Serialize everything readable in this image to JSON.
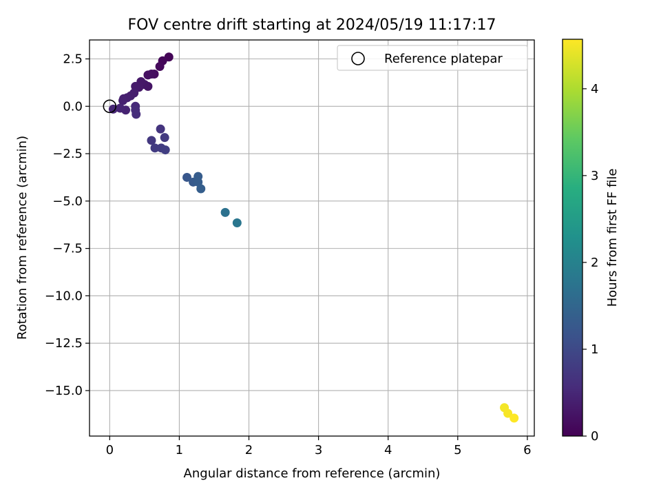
{
  "chart_data": {
    "type": "scatter",
    "title": "FOV centre drift starting at 2024/05/19 11:17:17",
    "xlabel": "Angular distance from reference (arcmin)",
    "ylabel": "Rotation from reference (arcmin)",
    "xlim": [
      -0.29,
      6.1
    ],
    "ylim": [
      -17.4,
      3.5
    ],
    "x_ticks": [
      0,
      1,
      2,
      3,
      4,
      5,
      6
    ],
    "x_tick_labels": [
      "0",
      "1",
      "2",
      "3",
      "4",
      "5",
      "6"
    ],
    "y_ticks": [
      2.5,
      0,
      -2.5,
      -5,
      -7.5,
      -10,
      -12.5,
      -15
    ],
    "y_tick_labels": [
      "2.5",
      "0.0",
      "−2.5",
      "−5.0",
      "−7.5",
      "−10.0",
      "−12.5",
      "−15.0"
    ],
    "grid": true,
    "legend": {
      "placement": "top-right",
      "entries": [
        {
          "label": "Reference platepar",
          "marker": "open-circle"
        }
      ]
    },
    "reference_point": {
      "x": 0,
      "y": 0
    },
    "colorbar": {
      "label": "Hours from first FF file",
      "colormap": "viridis",
      "range": [
        0,
        4.57
      ],
      "ticks": [
        0,
        1,
        2,
        3,
        4
      ],
      "tick_labels": [
        "0",
        "1",
        "2",
        "3",
        "4"
      ]
    },
    "points": [
      {
        "x": 0.85,
        "y": 2.6,
        "c": 0.05
      },
      {
        "x": 0.76,
        "y": 2.4,
        "c": 0.08
      },
      {
        "x": 0.72,
        "y": 2.1,
        "c": 0.1
      },
      {
        "x": 0.64,
        "y": 1.7,
        "c": 0.15
      },
      {
        "x": 0.6,
        "y": 1.7,
        "c": 0.18
      },
      {
        "x": 0.55,
        "y": 1.65,
        "c": 0.2
      },
      {
        "x": 0.55,
        "y": 1.05,
        "c": 0.25
      },
      {
        "x": 0.5,
        "y": 1.15,
        "c": 0.28
      },
      {
        "x": 0.45,
        "y": 1.3,
        "c": 0.3
      },
      {
        "x": 0.42,
        "y": 1.0,
        "c": 0.32
      },
      {
        "x": 0.37,
        "y": 1.05,
        "c": 0.35
      },
      {
        "x": 0.35,
        "y": 0.7,
        "c": 0.37
      },
      {
        "x": 0.3,
        "y": 0.55,
        "c": 0.38
      },
      {
        "x": 0.25,
        "y": 0.45,
        "c": 0.4
      },
      {
        "x": 0.2,
        "y": 0.4,
        "c": 0.41
      },
      {
        "x": 0.19,
        "y": 0.3,
        "c": 0.42
      },
      {
        "x": 0.23,
        "y": -0.2,
        "c": 0.45
      },
      {
        "x": 0.15,
        "y": -0.1,
        "c": 0.48
      },
      {
        "x": 0.05,
        "y": -0.15,
        "c": 0.5
      },
      {
        "x": 0.37,
        "y": 0.0,
        "c": 0.55
      },
      {
        "x": 0.37,
        "y": -0.2,
        "c": 0.58
      },
      {
        "x": 0.38,
        "y": -0.42,
        "c": 0.6
      },
      {
        "x": 0.73,
        "y": -1.2,
        "c": 0.7
      },
      {
        "x": 0.6,
        "y": -1.8,
        "c": 0.75
      },
      {
        "x": 0.79,
        "y": -1.65,
        "c": 0.78
      },
      {
        "x": 0.65,
        "y": -2.2,
        "c": 0.8
      },
      {
        "x": 0.74,
        "y": -2.2,
        "c": 0.82
      },
      {
        "x": 0.8,
        "y": -2.3,
        "c": 0.85
      },
      {
        "x": 1.11,
        "y": -3.75,
        "c": 1.25
      },
      {
        "x": 1.2,
        "y": -4.0,
        "c": 1.3
      },
      {
        "x": 1.27,
        "y": -3.7,
        "c": 1.33
      },
      {
        "x": 1.27,
        "y": -4.0,
        "c": 1.35
      },
      {
        "x": 1.31,
        "y": -4.35,
        "c": 1.38
      },
      {
        "x": 1.66,
        "y": -5.6,
        "c": 1.72
      },
      {
        "x": 1.83,
        "y": -6.15,
        "c": 1.8
      },
      {
        "x": 5.67,
        "y": -15.9,
        "c": 4.5
      },
      {
        "x": 5.72,
        "y": -16.2,
        "c": 4.53
      },
      {
        "x": 5.81,
        "y": -16.45,
        "c": 4.57
      }
    ]
  }
}
